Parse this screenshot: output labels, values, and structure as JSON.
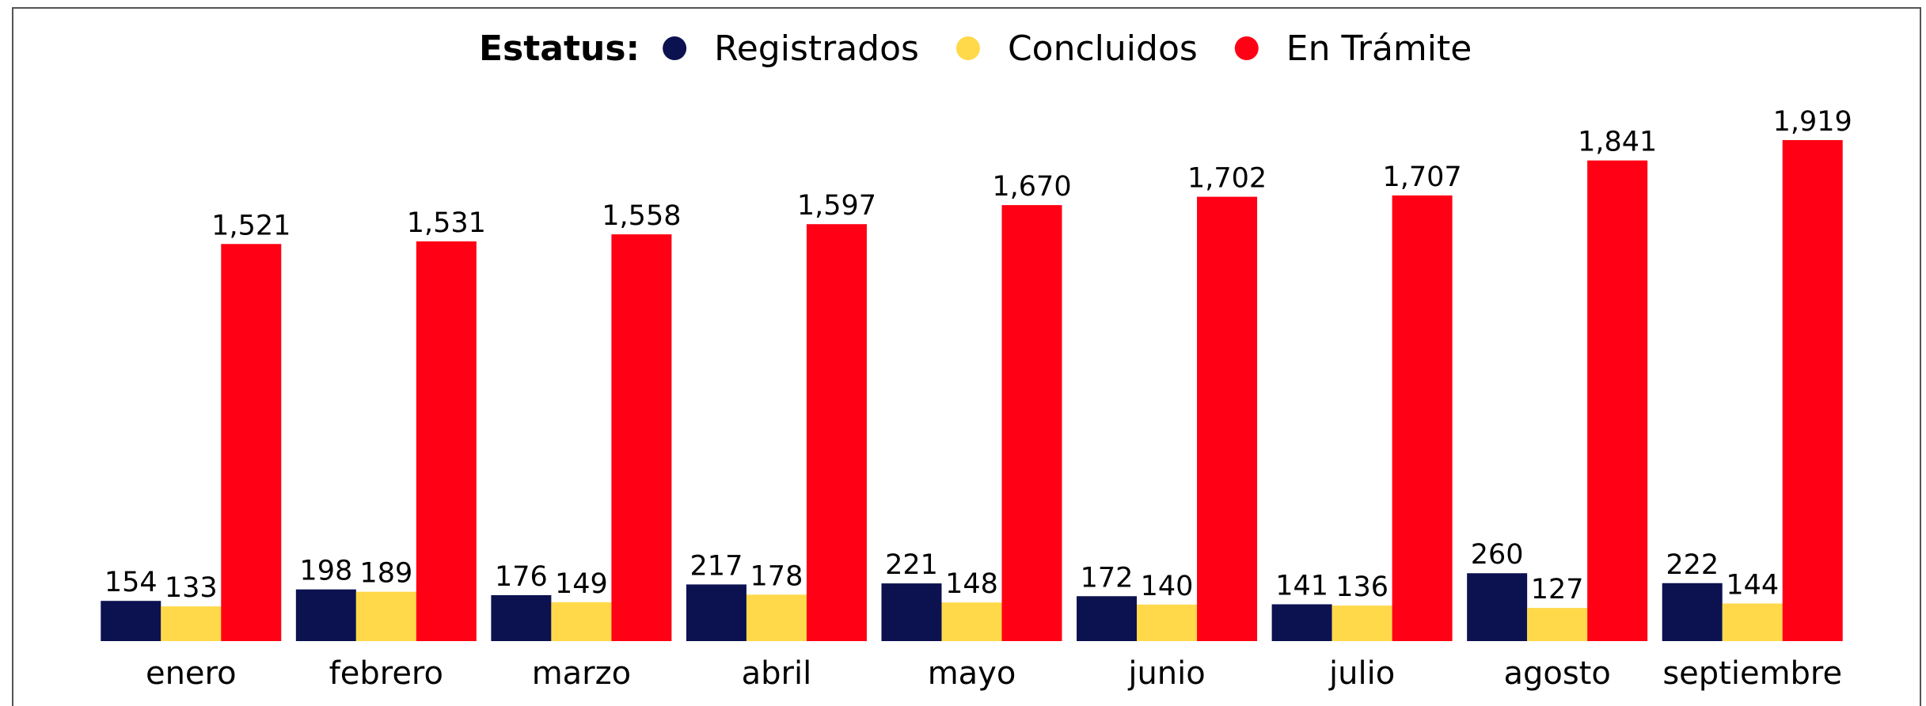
{
  "chart_data": {
    "type": "bar",
    "legend_title": "Estatus:",
    "categories": [
      "enero",
      "febrero",
      "marzo",
      "abril",
      "mayo",
      "junio",
      "julio",
      "agosto",
      "septiembre"
    ],
    "series": [
      {
        "name": "Registrados",
        "color": "#0c1250",
        "values": [
          154,
          198,
          176,
          217,
          221,
          172,
          141,
          260,
          222
        ]
      },
      {
        "name": "Concluidos",
        "color": "#ffd94a",
        "values": [
          133,
          189,
          149,
          178,
          148,
          140,
          136,
          127,
          144
        ]
      },
      {
        "name": "En Trámite",
        "color": "#ff0015",
        "values": [
          1521,
          1531,
          1558,
          1597,
          1670,
          1702,
          1707,
          1841,
          1919
        ],
        "value_labels": [
          "1,521",
          "1,531",
          "1,558",
          "1,597",
          "1,670",
          "1,702",
          "1,707",
          "1,841",
          "1,919"
        ]
      }
    ],
    "legend": "top"
  }
}
